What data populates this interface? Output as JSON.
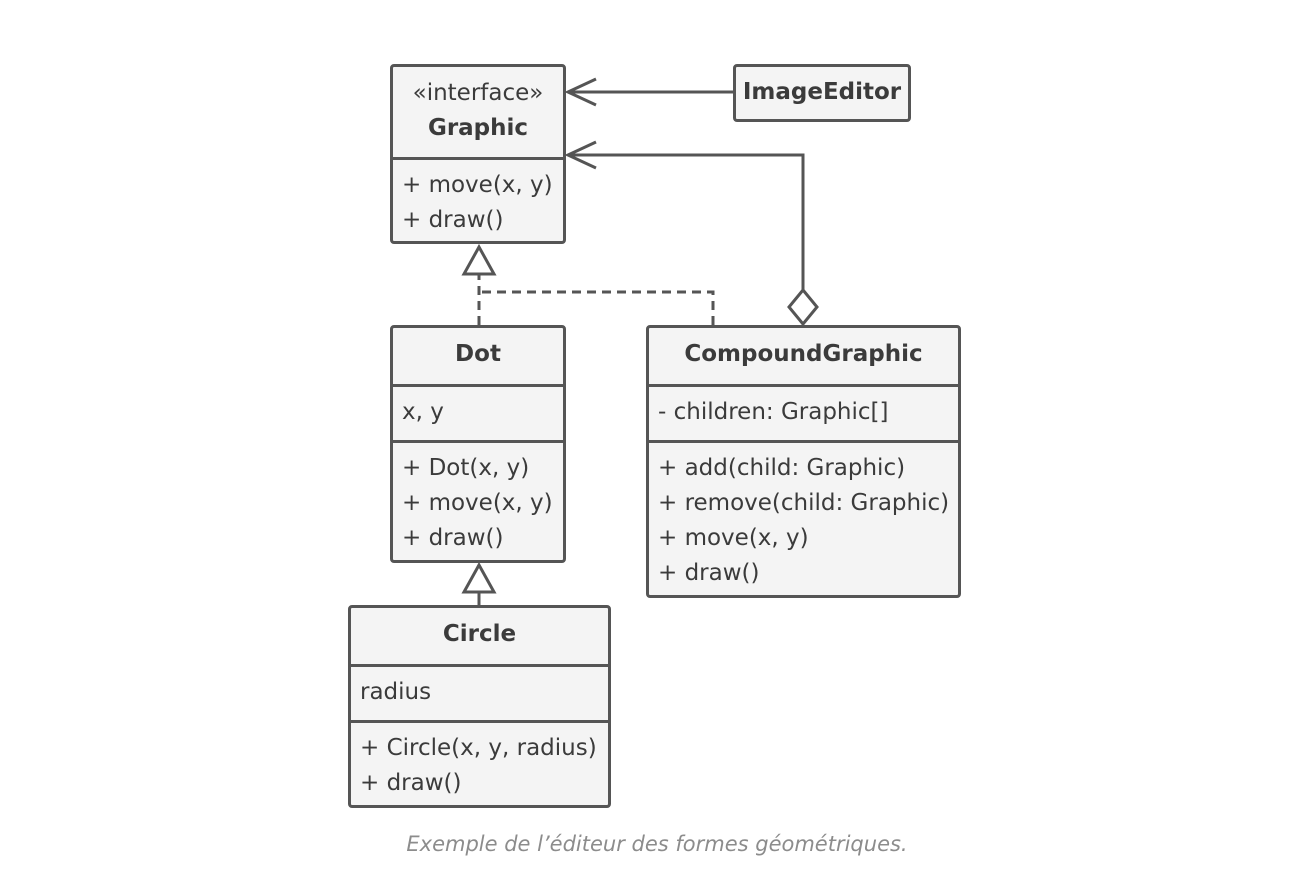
{
  "diagram": {
    "graphic": {
      "stereotype": "«interface»",
      "name": "Graphic",
      "methods": [
        "+ move(x, y)",
        "+ draw()"
      ]
    },
    "image_editor": {
      "name": "ImageEditor"
    },
    "dot": {
      "name": "Dot",
      "fields": [
        "x, y"
      ],
      "methods": [
        "+ Dot(x, y)",
        "+ move(x, y)",
        "+ draw()"
      ]
    },
    "compound_graphic": {
      "name": "CompoundGraphic",
      "fields": [
        "- children: Graphic[]"
      ],
      "methods": [
        "+ add(child: Graphic)",
        "+ remove(child: Graphic)",
        "+ move(x, y)",
        "+ draw()"
      ]
    },
    "circle": {
      "name": "Circle",
      "fields": [
        "radius"
      ],
      "methods": [
        "+ Circle(x, y, radius)",
        "+ draw()"
      ]
    }
  },
  "caption": "Exemple de l’éditeur des formes géométriques.",
  "colors": {
    "stroke": "#555555",
    "box_fill": "#f4f4f4",
    "text": "#3b3b3b",
    "caption": "#8c8c8c"
  }
}
